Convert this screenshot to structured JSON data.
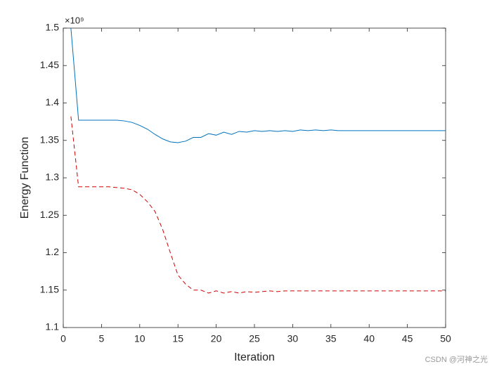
{
  "chart_data": {
    "type": "line",
    "xlabel": "Iteration",
    "ylabel": "Energy Function",
    "y_multiplier": "×10⁹",
    "watermark": "CSDN @河神之光",
    "x": [
      1,
      2,
      3,
      4,
      5,
      6,
      7,
      8,
      9,
      10,
      11,
      12,
      13,
      14,
      15,
      16,
      17,
      18,
      19,
      20,
      21,
      22,
      23,
      24,
      25,
      26,
      27,
      28,
      29,
      30,
      31,
      32,
      33,
      34,
      35,
      36,
      37,
      38,
      39,
      40,
      41,
      42,
      43,
      44,
      45,
      46,
      47,
      48,
      49,
      50
    ],
    "series": [
      {
        "color": "#0072bd",
        "dashed": false,
        "values": [
          1.5,
          1.377,
          1.377,
          1.377,
          1.377,
          1.377,
          1.377,
          1.376,
          1.374,
          1.37,
          1.365,
          1.358,
          1.352,
          1.348,
          1.347,
          1.349,
          1.354,
          1.354,
          1.359,
          1.357,
          1.361,
          1.358,
          1.362,
          1.361,
          1.363,
          1.362,
          1.363,
          1.362,
          1.363,
          1.362,
          1.364,
          1.363,
          1.364,
          1.363,
          1.364,
          1.363,
          1.363,
          1.363,
          1.363,
          1.363,
          1.363,
          1.363,
          1.363,
          1.363,
          1.363,
          1.363,
          1.363,
          1.363,
          1.363,
          1.363
        ]
      },
      {
        "color": "#d00000",
        "dashed": true,
        "values": [
          1.382,
          1.288,
          1.288,
          1.288,
          1.288,
          1.288,
          1.287,
          1.286,
          1.284,
          1.278,
          1.268,
          1.255,
          1.231,
          1.2,
          1.17,
          1.158,
          1.15,
          1.15,
          1.146,
          1.149,
          1.146,
          1.148,
          1.146,
          1.148,
          1.147,
          1.148,
          1.149,
          1.148,
          1.149,
          1.149,
          1.149,
          1.149,
          1.149,
          1.149,
          1.149,
          1.149,
          1.149,
          1.149,
          1.149,
          1.149,
          1.149,
          1.149,
          1.149,
          1.149,
          1.149,
          1.149,
          1.149,
          1.149,
          1.149,
          1.149
        ]
      }
    ],
    "xlim": [
      0,
      50
    ],
    "xticks": [
      0,
      5,
      10,
      15,
      20,
      25,
      30,
      35,
      40,
      45,
      50
    ],
    "ylim": [
      1.1,
      1.5
    ],
    "yticks": [
      1.1,
      1.15,
      1.2,
      1.25,
      1.3,
      1.35,
      1.4,
      1.45,
      1.5
    ],
    "grid": false
  }
}
